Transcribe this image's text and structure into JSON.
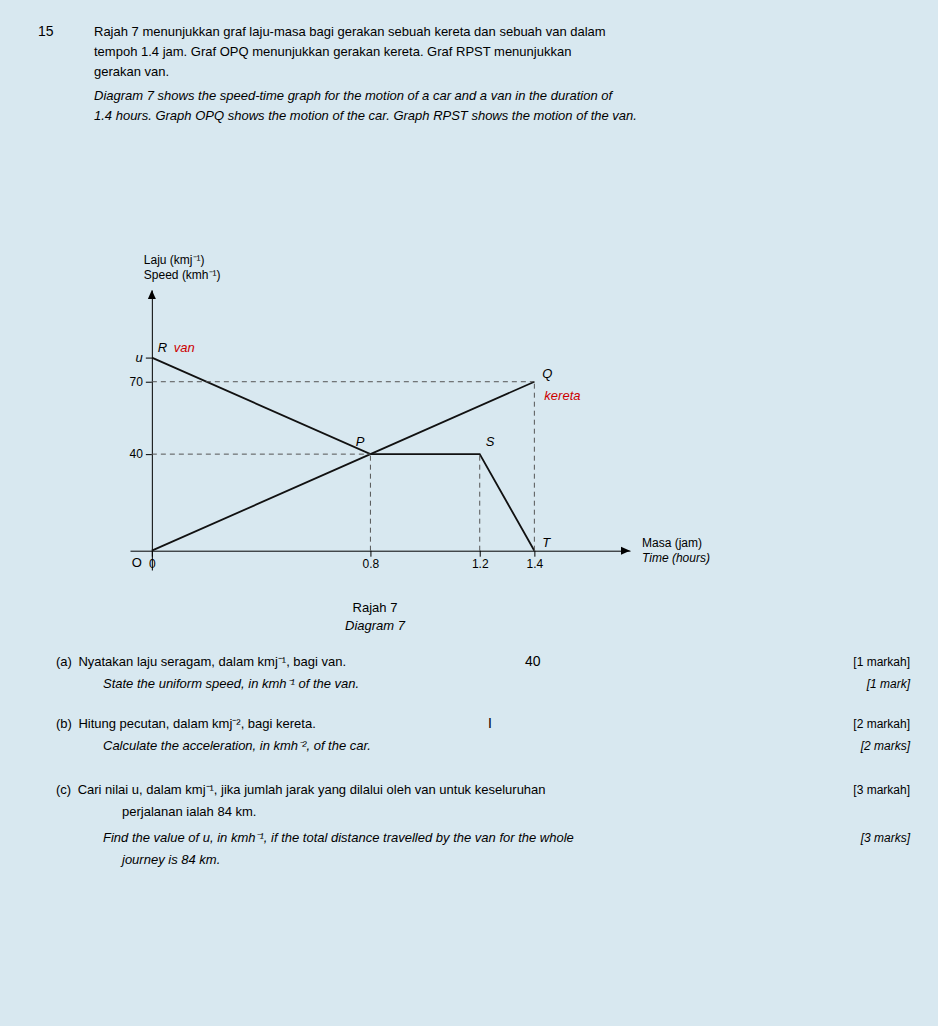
{
  "chart_data": {
    "type": "line",
    "background": "#d8e8f0",
    "title": "Rajah 7",
    "subtitle": "Diagram 7",
    "header": {
      "question_number": "15",
      "malay": [
        "Rajah 7 menunjukkan graf laju-masa bagi gerakan sebuah kereta dan sebuah van dalam",
        "tempoh 1.4 jam. Graf OPQ menunjukkan gerakan kereta. Graf RPST menunjukkan",
        "gerakan van."
      ],
      "english": [
        "Diagram 7 shows the speed-time graph for the motion of a car and a van in the duration of",
        "1.4 hours. Graph OPQ shows the motion of the car. Graph RPST shows the motion of the van."
      ]
    },
    "ylabel": [
      "Laju (kmj⁻¹)",
      "Speed (kmh⁻¹)"
    ],
    "xlabel": [
      "Masa (jam)",
      "Time (hours)"
    ],
    "xlim": [
      -0.08,
      1.75
    ],
    "ylim": [
      -8,
      108
    ],
    "xticks": [
      0,
      0.8,
      1.2,
      1.4
    ],
    "yticks": [
      40,
      70,
      {
        "value": 80,
        "label": "u"
      }
    ],
    "grid": false,
    "series": [
      {
        "x": [
          0,
          0.8,
          1.4
        ],
        "values": [
          0,
          40,
          70
        ],
        "color": "#111111",
        "line_style": "solid",
        "point_labels": [
          "O",
          "P",
          "Q"
        ]
      },
      {
        "x": [
          0,
          0.8,
          1.2,
          1.4
        ],
        "values": [
          80,
          40,
          40,
          0
        ],
        "color": "#111111",
        "line_style": "solid",
        "point_labels": [
          "R",
          null,
          "S",
          "T"
        ]
      },
      {
        "x": [
          0,
          1.4
        ],
        "values": [
          70,
          70
        ],
        "color": "#555555",
        "line_style": "dashed"
      },
      {
        "x": [
          0,
          0.8
        ],
        "values": [
          40,
          40
        ],
        "color": "#555555",
        "line_style": "dashed"
      },
      {
        "x": [
          0.8,
          0.8
        ],
        "values": [
          0,
          40
        ],
        "color": "#555555",
        "line_style": "dashed"
      },
      {
        "x": [
          1.2,
          1.2
        ],
        "values": [
          0,
          40
        ],
        "color": "#555555",
        "line_style": "dashed"
      },
      {
        "x": [
          1.4,
          1.4
        ],
        "values": [
          0,
          70
        ],
        "color": "#555555",
        "line_style": "dashed"
      }
    ],
    "annotations": [
      {
        "text": "van",
        "series": 1,
        "point": 0,
        "color": "#cc0000"
      },
      {
        "text": "kereta",
        "series": 0,
        "point": 2,
        "color": "#cc0000"
      }
    ],
    "questions": [
      {
        "malay": [
          "(a) Nyatakan laju seragam, dalam kmj⁻¹, bagi van."
        ],
        "english": [
          "State the uniform speed, in kmh⁻¹ of the van."
        ],
        "marks_malay": "[1 markah]",
        "marks_english": "[1 mark]",
        "answer": "40"
      },
      {
        "malay": [
          "(b) Hitung pecutan, dalam kmj⁻², bagi kereta."
        ],
        "english": [
          "Calculate the acceleration, in kmh⁻², of the car."
        ],
        "marks_malay": "[2 markah]",
        "marks_english": "[2 marks]",
        "answer": "I"
      },
      {
        "malay": [
          "(c) Cari nilai u, dalam kmj⁻¹, jika jumlah jarak yang dilalui oleh van untuk keseluruhan",
          "perjalanan ialah 84 km."
        ],
        "english": [
          "Find the value of u, in kmh⁻¹, if the total distance travelled by the van for the whole",
          "journey is 84 km."
        ],
        "marks_malay": "[3 markah]",
        "marks_english": "[3 marks]"
      }
    ]
  }
}
